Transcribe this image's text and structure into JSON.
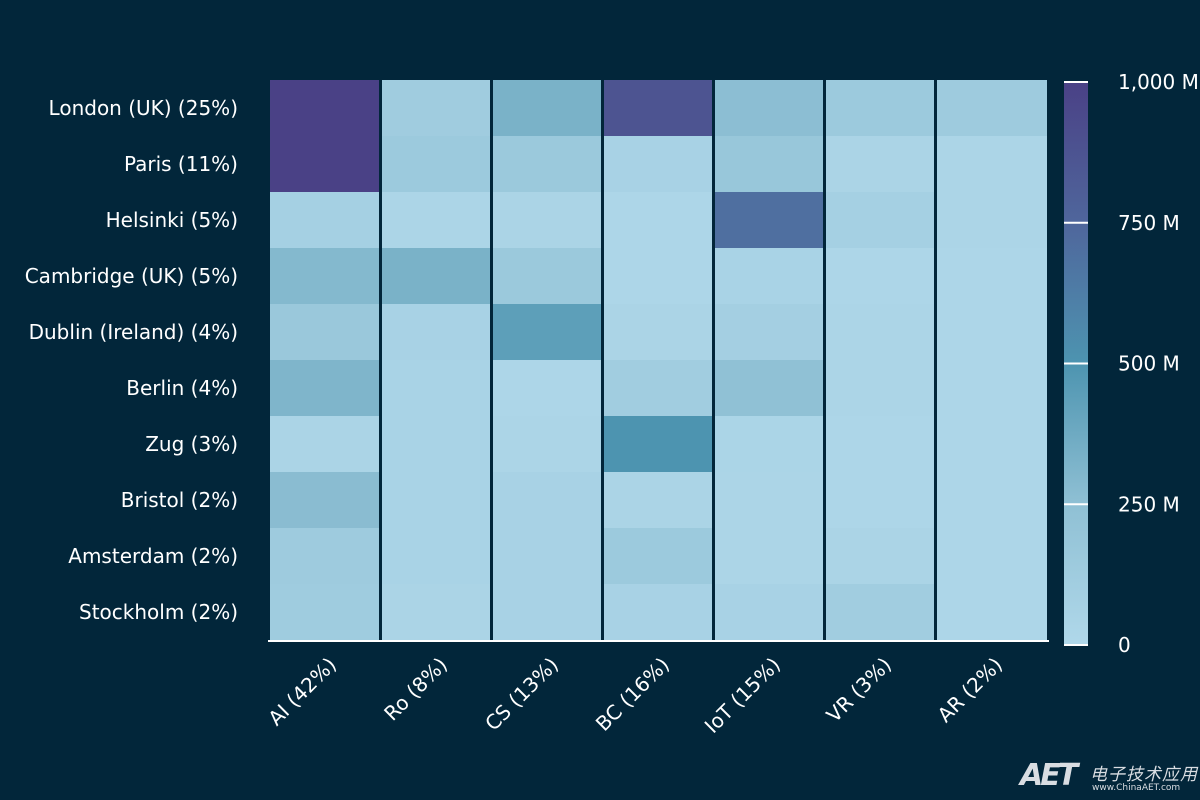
{
  "chart_data": {
    "type": "heatmap",
    "rows": [
      "London (UK) (25%)",
      "Paris (11%)",
      "Helsinki (5%)",
      "Cambridge (UK) (5%)",
      "Dublin (Ireland) (4%)",
      "Berlin (4%)",
      "Zug (3%)",
      "Bristol (2%)",
      "Amsterdam (2%)",
      "Stockholm (2%)"
    ],
    "columns": [
      "AI (42%)",
      "Ro (8%)",
      "CS (13%)",
      "BC (16%)",
      "IoT (15%)",
      "VR (3%)",
      "AR (2%)"
    ],
    "values": [
      [
        1000,
        120,
        330,
        870,
        260,
        150,
        140
      ],
      [
        1000,
        150,
        160,
        60,
        180,
        40,
        30
      ],
      [
        80,
        30,
        40,
        20,
        700,
        80,
        30
      ],
      [
        290,
        330,
        160,
        25,
        50,
        25,
        25
      ],
      [
        170,
        60,
        440,
        40,
        90,
        30,
        20
      ],
      [
        310,
        50,
        20,
        110,
        240,
        30,
        20
      ],
      [
        40,
        50,
        30,
        500,
        35,
        25,
        25
      ],
      [
        270,
        50,
        60,
        40,
        30,
        25,
        20
      ],
      [
        140,
        50,
        60,
        150,
        30,
        40,
        20
      ],
      [
        130,
        40,
        60,
        60,
        60,
        110,
        20
      ]
    ],
    "colorbar": {
      "min": 0,
      "max": 1000,
      "ticks": [
        0,
        250,
        500,
        750,
        1000
      ],
      "tick_labels": [
        "0",
        "250 M",
        "500 M",
        "750 M",
        "1,000 M"
      ],
      "colors": [
        "#b0d8ea",
        "#8fc0d4",
        "#4d94b0",
        "#4f669c",
        "#4a4186"
      ]
    },
    "title": "",
    "xlabel": "",
    "ylabel": ""
  },
  "watermark": {
    "brand": "AET",
    "cn_text": "电子技术应用",
    "url": "www.ChinaAET.com"
  }
}
